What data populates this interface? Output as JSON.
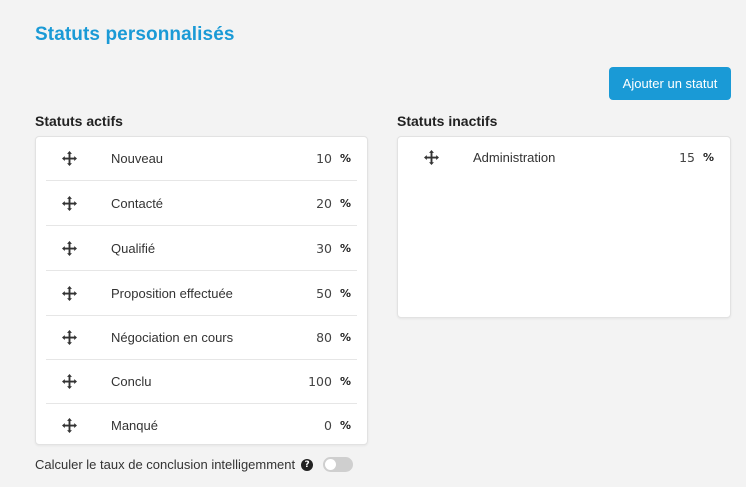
{
  "page": {
    "title": "Statuts personnalisés"
  },
  "actions": {
    "add_status_label": "Ajouter un statut"
  },
  "active": {
    "title": "Statuts actifs",
    "items": [
      {
        "label": "Nouveau",
        "percent": "10",
        "unit": "%"
      },
      {
        "label": "Contacté",
        "percent": "20",
        "unit": "%"
      },
      {
        "label": "Qualifié",
        "percent": "30",
        "unit": "%"
      },
      {
        "label": "Proposition effectuée",
        "percent": "50",
        "unit": "%"
      },
      {
        "label": "Négociation en cours",
        "percent": "80",
        "unit": "%"
      },
      {
        "label": "Conclu",
        "percent": "100",
        "unit": "%"
      },
      {
        "label": "Manqué",
        "percent": "0",
        "unit": "%"
      }
    ]
  },
  "inactive": {
    "title": "Statuts inactifs",
    "items": [
      {
        "label": "Administration",
        "percent": "15",
        "unit": "%"
      }
    ]
  },
  "footer": {
    "smart_rate_label": "Calculer le taux de conclusion intelligemment",
    "help_glyph": "?",
    "toggle_on": false
  },
  "colors": {
    "accent": "#1a9ad6",
    "background": "#f3f3f3"
  },
  "icons": {
    "drag": "move-arrows-icon",
    "help": "question-circle-icon"
  }
}
